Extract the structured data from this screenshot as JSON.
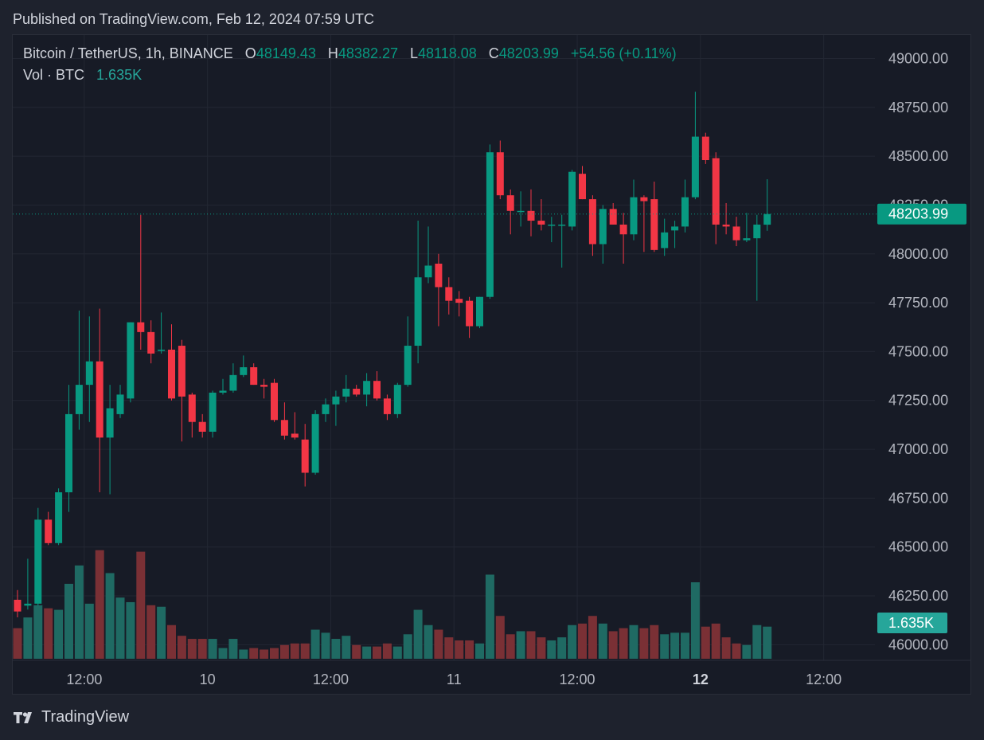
{
  "header": {
    "published": "Published on TradingView.com, Feb 12, 2024 07:59 UTC"
  },
  "legend": {
    "symbol": "Bitcoin / TetherUS, 1h, BINANCE",
    "o_label": "O",
    "o_value": "48149.43",
    "h_label": "H",
    "h_value": "48382.27",
    "l_label": "L",
    "l_value": "48118.08",
    "c_label": "C",
    "c_value": "48203.99",
    "change": "+54.56 (+0.11%)",
    "vol_label": "Vol · BTC",
    "vol_value": "1.635K"
  },
  "footer": {
    "brand": "TradingView"
  },
  "colors": {
    "up": "#089981",
    "down": "#f23645",
    "vol_up": "#1f6a63",
    "vol_down": "#7a3035",
    "background": "#171b26",
    "grid": "#232733",
    "price_tag": "#089981",
    "vol_tag": "#26a69a"
  },
  "chart_data": {
    "type": "candlestick",
    "symbol": "BTCUSDT",
    "interval": "1h",
    "exchange": "BINANCE",
    "ylim": [
      45920,
      49120
    ],
    "y_ticks": [
      "49000.00",
      "48750.00",
      "48500.00",
      "48250.00",
      "48000.00",
      "47750.00",
      "47500.00",
      "47250.00",
      "47000.00",
      "46750.00",
      "46500.00",
      "46250.00",
      "46000.00"
    ],
    "x_ticks": [
      {
        "label": "12:00",
        "index": 6.5,
        "bold": false
      },
      {
        "label": "10",
        "index": 18.5,
        "bold": false
      },
      {
        "label": "12:00",
        "index": 30.5,
        "bold": false
      },
      {
        "label": "11",
        "index": 42.5,
        "bold": false
      },
      {
        "label": "12:00",
        "index": 54.5,
        "bold": false
      },
      {
        "label": "12",
        "index": 66.5,
        "bold": true
      },
      {
        "label": "12:00",
        "index": 78.5,
        "bold": false
      }
    ],
    "last_price": "48203.99",
    "last_volume": "1.635K",
    "candles": [
      {
        "o": 46230,
        "h": 46280,
        "l": 46140,
        "c": 46170,
        "v": 0.2
      },
      {
        "o": 46200,
        "h": 46440,
        "l": 46180,
        "c": 46210,
        "v": 0.27
      },
      {
        "o": 46210,
        "h": 46700,
        "l": 46200,
        "c": 46640,
        "v": 0.35
      },
      {
        "o": 46640,
        "h": 46680,
        "l": 46510,
        "c": 46520,
        "v": 0.33
      },
      {
        "o": 46520,
        "h": 46800,
        "l": 46510,
        "c": 46780,
        "v": 0.32
      },
      {
        "o": 46780,
        "h": 47330,
        "l": 46680,
        "c": 47180,
        "v": 0.49
      },
      {
        "o": 47180,
        "h": 47710,
        "l": 47100,
        "c": 47330,
        "v": 0.61
      },
      {
        "o": 47330,
        "h": 47680,
        "l": 47140,
        "c": 47450,
        "v": 0.36
      },
      {
        "o": 47450,
        "h": 47720,
        "l": 46780,
        "c": 47060,
        "v": 0.71
      },
      {
        "o": 47060,
        "h": 47330,
        "l": 46770,
        "c": 47210,
        "v": 0.56
      },
      {
        "o": 47180,
        "h": 47330,
        "l": 47160,
        "c": 47280,
        "v": 0.4
      },
      {
        "o": 47260,
        "h": 47650,
        "l": 47240,
        "c": 47650,
        "v": 0.37
      },
      {
        "o": 47650,
        "h": 48200,
        "l": 47510,
        "c": 47600,
        "v": 0.7
      },
      {
        "o": 47600,
        "h": 47660,
        "l": 47440,
        "c": 47490,
        "v": 0.35
      },
      {
        "o": 47510,
        "h": 47700,
        "l": 47490,
        "c": 47510,
        "v": 0.34
      },
      {
        "o": 47510,
        "h": 47640,
        "l": 47250,
        "c": 47260,
        "v": 0.22
      },
      {
        "o": 47530,
        "h": 47560,
        "l": 47040,
        "c": 47270,
        "v": 0.15
      },
      {
        "o": 47280,
        "h": 47290,
        "l": 47060,
        "c": 47140,
        "v": 0.13
      },
      {
        "o": 47140,
        "h": 47180,
        "l": 47060,
        "c": 47090,
        "v": 0.13
      },
      {
        "o": 47090,
        "h": 47300,
        "l": 47060,
        "c": 47290,
        "v": 0.13
      },
      {
        "o": 47290,
        "h": 47360,
        "l": 47280,
        "c": 47300,
        "v": 0.07
      },
      {
        "o": 47300,
        "h": 47440,
        "l": 47290,
        "c": 47380,
        "v": 0.13
      },
      {
        "o": 47380,
        "h": 47480,
        "l": 47370,
        "c": 47420,
        "v": 0.06
      },
      {
        "o": 47420,
        "h": 47440,
        "l": 47330,
        "c": 47330,
        "v": 0.07
      },
      {
        "o": 47330,
        "h": 47360,
        "l": 47260,
        "c": 47320,
        "v": 0.06
      },
      {
        "o": 47340,
        "h": 47360,
        "l": 47140,
        "c": 47150,
        "v": 0.07
      },
      {
        "o": 47150,
        "h": 47240,
        "l": 47050,
        "c": 47070,
        "v": 0.09
      },
      {
        "o": 47080,
        "h": 47190,
        "l": 47050,
        "c": 47060,
        "v": 0.1
      },
      {
        "o": 47050,
        "h": 47130,
        "l": 46810,
        "c": 46880,
        "v": 0.1
      },
      {
        "o": 46880,
        "h": 47200,
        "l": 46870,
        "c": 47180,
        "v": 0.19
      },
      {
        "o": 47180,
        "h": 47260,
        "l": 47140,
        "c": 47230,
        "v": 0.17
      },
      {
        "o": 47230,
        "h": 47300,
        "l": 47120,
        "c": 47270,
        "v": 0.13
      },
      {
        "o": 47270,
        "h": 47380,
        "l": 47240,
        "c": 47310,
        "v": 0.15
      },
      {
        "o": 47310,
        "h": 47330,
        "l": 47270,
        "c": 47280,
        "v": 0.09
      },
      {
        "o": 47280,
        "h": 47390,
        "l": 47220,
        "c": 47350,
        "v": 0.08
      },
      {
        "o": 47350,
        "h": 47400,
        "l": 47250,
        "c": 47260,
        "v": 0.08
      },
      {
        "o": 47260,
        "h": 47280,
        "l": 47150,
        "c": 47180,
        "v": 0.1
      },
      {
        "o": 47180,
        "h": 47340,
        "l": 47160,
        "c": 47330,
        "v": 0.08
      },
      {
        "o": 47330,
        "h": 47680,
        "l": 47320,
        "c": 47530,
        "v": 0.16
      },
      {
        "o": 47530,
        "h": 48170,
        "l": 47440,
        "c": 47880,
        "v": 0.32
      },
      {
        "o": 47880,
        "h": 48140,
        "l": 47850,
        "c": 47940,
        "v": 0.22
      },
      {
        "o": 47950,
        "h": 48000,
        "l": 47630,
        "c": 47830,
        "v": 0.19
      },
      {
        "o": 47830,
        "h": 47880,
        "l": 47690,
        "c": 47760,
        "v": 0.14
      },
      {
        "o": 47770,
        "h": 47810,
        "l": 47680,
        "c": 47750,
        "v": 0.12
      },
      {
        "o": 47760,
        "h": 47780,
        "l": 47570,
        "c": 47630,
        "v": 0.12
      },
      {
        "o": 47630,
        "h": 47780,
        "l": 47620,
        "c": 47780,
        "v": 0.1
      },
      {
        "o": 47780,
        "h": 48560,
        "l": 47770,
        "c": 48520,
        "v": 0.55
      },
      {
        "o": 48520,
        "h": 48580,
        "l": 48280,
        "c": 48300,
        "v": 0.28
      },
      {
        "o": 48300,
        "h": 48330,
        "l": 48100,
        "c": 48220,
        "v": 0.16
      },
      {
        "o": 48220,
        "h": 48320,
        "l": 48140,
        "c": 48220,
        "v": 0.18
      },
      {
        "o": 48220,
        "h": 48330,
        "l": 48090,
        "c": 48170,
        "v": 0.18
      },
      {
        "o": 48170,
        "h": 48280,
        "l": 48120,
        "c": 48150,
        "v": 0.14
      },
      {
        "o": 48150,
        "h": 48190,
        "l": 48060,
        "c": 48150,
        "v": 0.12
      },
      {
        "o": 48150,
        "h": 48200,
        "l": 47930,
        "c": 48150,
        "v": 0.14
      },
      {
        "o": 48140,
        "h": 48430,
        "l": 48120,
        "c": 48420,
        "v": 0.22
      },
      {
        "o": 48410,
        "h": 48450,
        "l": 48280,
        "c": 48280,
        "v": 0.23
      },
      {
        "o": 48280,
        "h": 48300,
        "l": 47990,
        "c": 48050,
        "v": 0.28
      },
      {
        "o": 48050,
        "h": 48250,
        "l": 47950,
        "c": 48230,
        "v": 0.23
      },
      {
        "o": 48230,
        "h": 48260,
        "l": 48150,
        "c": 48150,
        "v": 0.18
      },
      {
        "o": 48150,
        "h": 48210,
        "l": 47950,
        "c": 48100,
        "v": 0.2
      },
      {
        "o": 48100,
        "h": 48380,
        "l": 48070,
        "c": 48290,
        "v": 0.22
      },
      {
        "o": 48290,
        "h": 48300,
        "l": 48010,
        "c": 48270,
        "v": 0.2
      },
      {
        "o": 48280,
        "h": 48370,
        "l": 48010,
        "c": 48020,
        "v": 0.22
      },
      {
        "o": 48030,
        "h": 48180,
        "l": 47990,
        "c": 48110,
        "v": 0.16
      },
      {
        "o": 48120,
        "h": 48170,
        "l": 48030,
        "c": 48140,
        "v": 0.17
      },
      {
        "o": 48140,
        "h": 48380,
        "l": 48110,
        "c": 48290,
        "v": 0.17
      },
      {
        "o": 48290,
        "h": 48830,
        "l": 48280,
        "c": 48600,
        "v": 0.5
      },
      {
        "o": 48600,
        "h": 48620,
        "l": 48460,
        "c": 48480,
        "v": 0.21
      },
      {
        "o": 48490,
        "h": 48520,
        "l": 48050,
        "c": 48150,
        "v": 0.23
      },
      {
        "o": 48150,
        "h": 48260,
        "l": 48100,
        "c": 48140,
        "v": 0.14
      },
      {
        "o": 48140,
        "h": 48190,
        "l": 48040,
        "c": 48070,
        "v": 0.1
      },
      {
        "o": 48070,
        "h": 48210,
        "l": 48060,
        "c": 48080,
        "v": 0.09
      },
      {
        "o": 48080,
        "h": 48200,
        "l": 47760,
        "c": 48150,
        "v": 0.22
      },
      {
        "o": 48149.43,
        "h": 48382.27,
        "l": 48118.08,
        "c": 48203.99,
        "v": 0.21
      }
    ]
  }
}
